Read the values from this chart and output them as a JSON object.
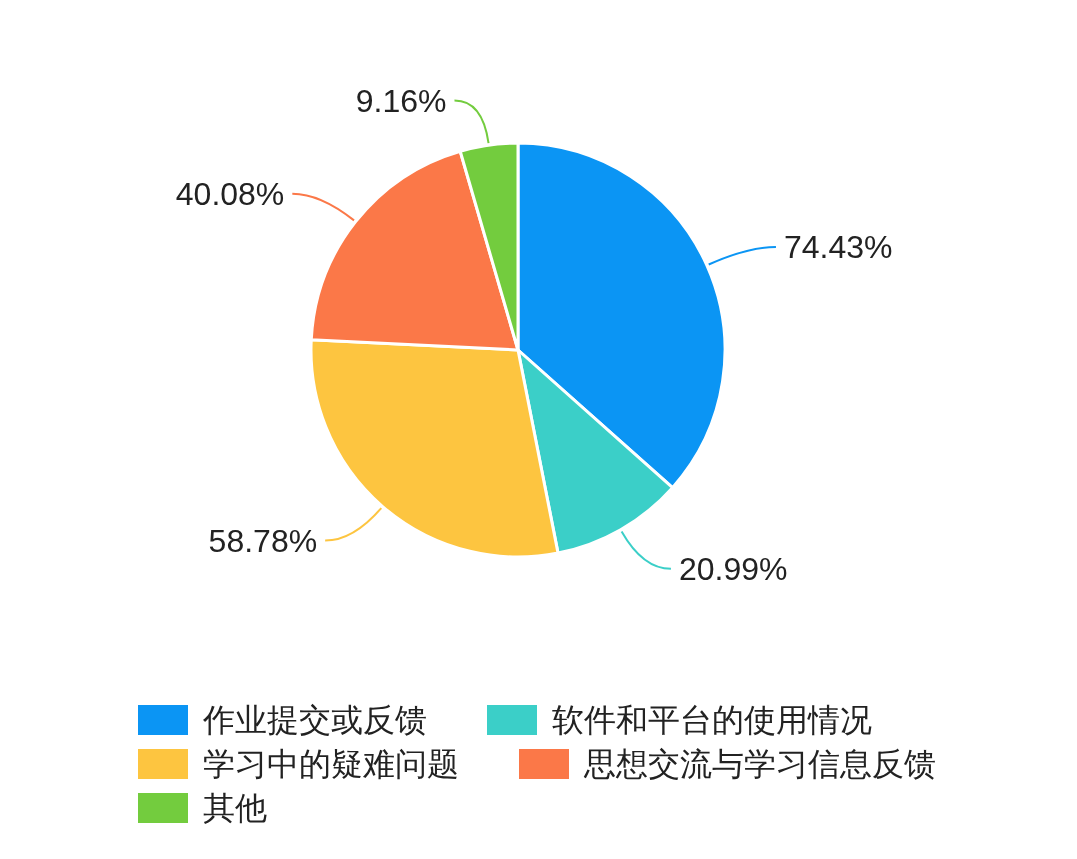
{
  "chart_data": {
    "type": "pie",
    "categories": [
      "作业提交或反馈",
      "软件和平台的使用情况",
      "学习中的疑难问题",
      "思想交流与学习信息反馈",
      "其他"
    ],
    "values": [
      74.43,
      20.99,
      58.78,
      40.08,
      9.16
    ],
    "colors": [
      "#0b95f4",
      "#3bcfc8",
      "#fdc540",
      "#fb7848",
      "#73cc3e"
    ],
    "value_labels": [
      "74.43%",
      "20.99%",
      "58.78%",
      "40.08%",
      "9.16%"
    ],
    "legend": "bottom"
  }
}
